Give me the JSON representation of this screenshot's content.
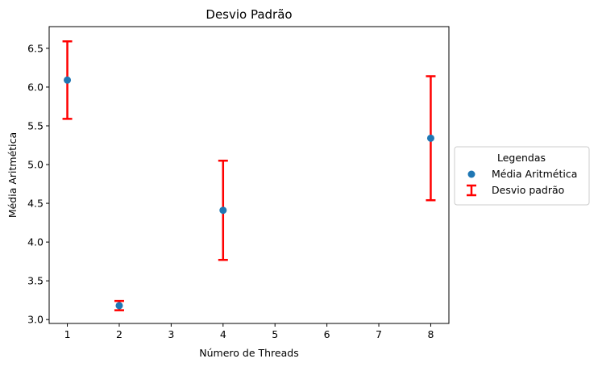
{
  "chart_data": {
    "type": "scatter",
    "title": "Desvio Padrão",
    "xlabel": "Número de Threads",
    "ylabel": "Média Aritmética",
    "xlim": [
      0.65,
      8.35
    ],
    "ylim": [
      2.95,
      6.78
    ],
    "xticks": [
      1,
      2,
      3,
      4,
      5,
      6,
      7,
      8
    ],
    "yticks": [
      3.0,
      3.5,
      4.0,
      4.5,
      5.0,
      5.5,
      6.0,
      6.5
    ],
    "grid": false,
    "points": [
      {
        "x": 1,
        "y": 6.09,
        "err": 0.5
      },
      {
        "x": 2,
        "y": 3.18,
        "err": 0.06
      },
      {
        "x": 4,
        "y": 4.41,
        "err": 0.64
      },
      {
        "x": 8,
        "y": 5.34,
        "err": 0.8
      }
    ],
    "legend": {
      "title": "Legendas",
      "placement": "outside-right",
      "entries": [
        {
          "label": "Média Aritmética",
          "kind": "marker",
          "color": "#1f77b4"
        },
        {
          "label": "Desvio padrão",
          "kind": "errorbar",
          "color": "#ff0000"
        }
      ]
    },
    "colors": {
      "marker": "#1f77b4",
      "errorbar": "#ff0000"
    }
  }
}
